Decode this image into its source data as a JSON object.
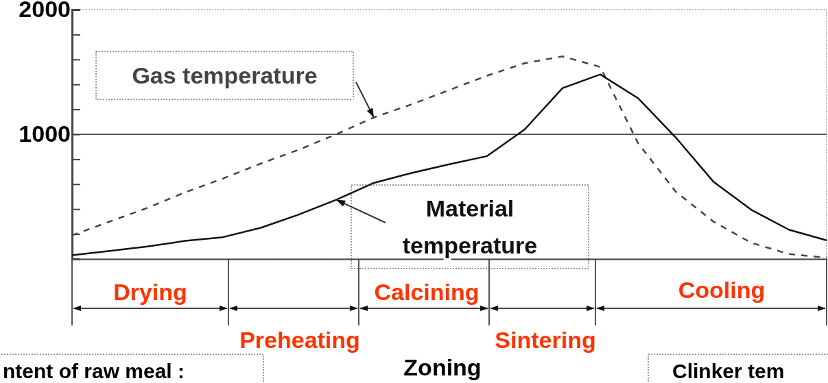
{
  "chart_data": {
    "type": "line",
    "xlabel": "Zoning",
    "categories": [
      null,
      null,
      null,
      null,
      null,
      null,
      null,
      null,
      null,
      null,
      null,
      null,
      null,
      null,
      null,
      null,
      null,
      null,
      null,
      null,
      null
    ],
    "ylim": [
      0,
      2000
    ],
    "yticks": [
      {
        "value": 0,
        "label": null
      },
      {
        "value": 200,
        "label": null
      },
      {
        "value": 400,
        "label": null
      },
      {
        "value": 600,
        "label": null
      },
      {
        "value": 800,
        "label": null
      },
      1000,
      {
        "value": 1200,
        "label": null
      },
      {
        "value": 1400,
        "label": null
      },
      {
        "value": 1600,
        "label": null
      },
      {
        "value": 1800,
        "label": null
      },
      2000
    ],
    "tick_labels": "y",
    "legend": "left",
    "series": [
      {
        "name": "Gas temperature",
        "color": "#444444",
        "line_style": "dashed",
        "values": [
          190,
          300,
          410,
          535,
          645,
          765,
          875,
          1000,
          1135,
          1240,
          1355,
          1470,
          1570,
          1625,
          1540,
          930,
          540,
          300,
          130,
          40,
          10
        ]
      },
      {
        "name": "Material temperature",
        "color": "#111111",
        "line_style": "solid",
        "values": [
          30,
          65,
          100,
          145,
          175,
          250,
          355,
          475,
          610,
          690,
          760,
          825,
          1040,
          1370,
          1480,
          1290,
          975,
          620,
          395,
          235,
          150
        ]
      }
    ],
    "ref_lines": [
      {
        "axis": "y",
        "value": 1000
      }
    ],
    "annotations": [
      "Drying",
      "Preheating",
      "Calcining",
      "Sintering",
      "Cooling",
      "ntent of raw meal :",
      "Clinker tem"
    ]
  }
}
